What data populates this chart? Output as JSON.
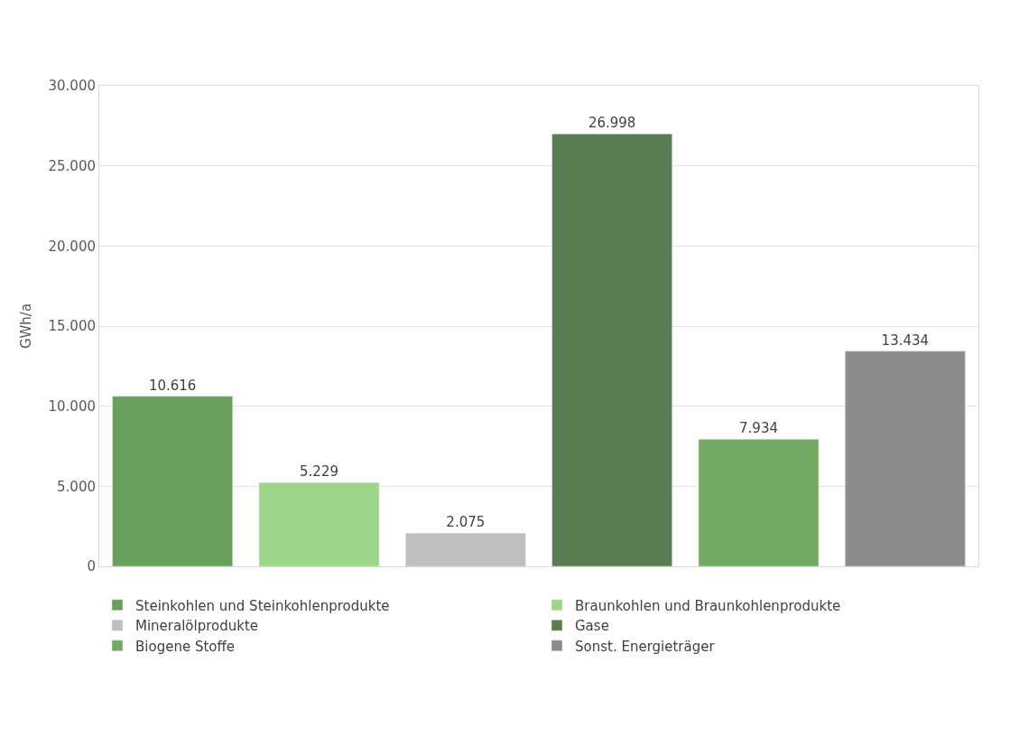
{
  "chart_data": {
    "type": "bar",
    "ylabel": "GWh/a",
    "categories": [
      null,
      null,
      null,
      null,
      null,
      null
    ],
    "series": [
      {
        "name": "Steinkohlen und Steinkohlenprodukte",
        "color": "#6a9e5c",
        "values": [
          10616,
          null,
          null,
          null,
          null,
          null
        ],
        "value_labels": [
          "10.616",
          null,
          null,
          null,
          null,
          null
        ]
      },
      {
        "name": "Braunkohlen und Braunkohlenprodukte",
        "color": "#9fd48b",
        "values": [
          null,
          5229,
          null,
          null,
          null,
          null
        ],
        "value_labels": [
          null,
          "5.229",
          null,
          null,
          null,
          null
        ]
      },
      {
        "name": "Mineralölprodukte",
        "color": "#bfbfbf",
        "values": [
          null,
          null,
          2075,
          null,
          null,
          null
        ],
        "value_labels": [
          null,
          null,
          "2.075",
          null,
          null,
          null
        ]
      },
      {
        "name": "Gase",
        "color": "#5b7b53",
        "values": [
          null,
          null,
          null,
          26998,
          null,
          null
        ],
        "value_labels": [
          null,
          null,
          null,
          "26.998",
          null,
          null
        ]
      },
      {
        "name": "Biogene Stoffe",
        "color": "#74a964",
        "values": [
          null,
          null,
          null,
          null,
          7934,
          null
        ],
        "value_labels": [
          null,
          null,
          null,
          null,
          "7.934",
          null
        ]
      },
      {
        "name": "Sonst. Energieträger",
        "color": "#8c8c8c",
        "values": [
          null,
          null,
          null,
          null,
          null,
          13434
        ],
        "value_labels": [
          null,
          null,
          null,
          null,
          null,
          "13.434"
        ]
      }
    ],
    "ylim": [
      0,
      30000
    ],
    "yticks": [
      0,
      {
        "value": 5000,
        "label": "5.000"
      },
      {
        "value": 10000,
        "label": "10.000"
      },
      {
        "value": 15000,
        "label": "15.000"
      },
      {
        "value": 20000,
        "label": "20.000"
      },
      {
        "value": 25000,
        "label": "25.000"
      },
      {
        "value": 30000,
        "label": "30.000"
      }
    ],
    "grid": "y",
    "legend": "bottom"
  }
}
